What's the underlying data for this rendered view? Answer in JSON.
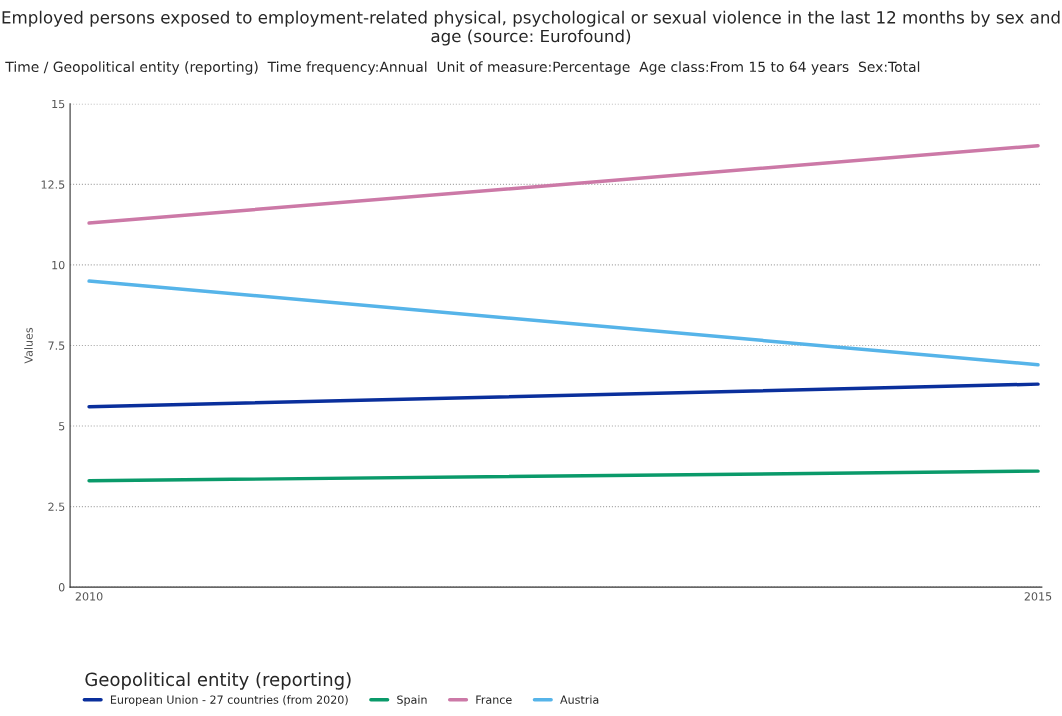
{
  "chart_data": {
    "type": "line",
    "title": "Employed persons exposed to employment-related physical, psychological or sexual violence in the last 12 months by sex and age (source: Eurofound)",
    "subtitle": "Time / Geopolitical entity (reporting)  Time frequency:Annual  Unit of measure:Percentage  Age class:From 15 to 64 years  Sex:Total",
    "ylabel": "Values",
    "legend_title": "Geopolitical entity (reporting)",
    "x": [
      2010,
      2015
    ],
    "xlim": [
      2009.9,
      2015.02
    ],
    "xticks": [
      2010,
      2015
    ],
    "ylim": [
      0,
      15
    ],
    "yticks": [
      0,
      2.5,
      5,
      7.5,
      10,
      12.5,
      15
    ],
    "grid": "y",
    "legend": "bottom left",
    "marker": "none",
    "line_style": "solid",
    "series": [
      {
        "name": "European Union - 27 countries (from 2020)",
        "color": "#0a2f9c",
        "values": [
          5.6,
          6.3
        ]
      },
      {
        "name": "Spain",
        "color": "#0a9a6a",
        "values": [
          3.3,
          3.6
        ]
      },
      {
        "name": "France",
        "color": "#cc79a7",
        "values": [
          11.3,
          13.7
        ]
      },
      {
        "name": "Austria",
        "color": "#56b4e9",
        "values": [
          9.5,
          6.9
        ]
      }
    ]
  }
}
